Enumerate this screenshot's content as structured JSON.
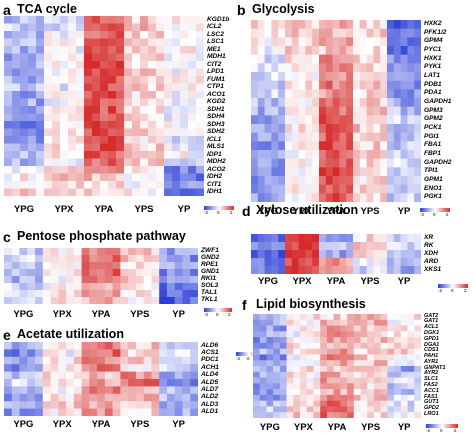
{
  "colors": {
    "low": "#2b3fd6",
    "mid": "#ffffff",
    "high": "#d62b2b"
  },
  "colorbar_ticks": [
    "-2",
    "0",
    "2"
  ],
  "panels": [
    {
      "id": "a",
      "label": "a",
      "title": "TCA cycle",
      "conditions": [
        "YPG",
        "YPX",
        "YPA",
        "YPS",
        "YP"
      ],
      "genes": [
        "KGD1b",
        "ICL2",
        "LSC2",
        "LSC1",
        "ME1",
        "MDH1",
        "CIT2",
        "LPD1",
        "FUM1",
        "CTP1",
        "ACO1",
        "KGD2",
        "SDH1",
        "SDH4",
        "SDH3",
        "SDH2",
        "ICL1",
        "MLS1",
        "IDP1",
        "MDH2",
        "ACO2",
        "IDH2",
        "CIT1",
        "IDH1"
      ],
      "profiles": [
        [
          -0.6,
          -0.2,
          1.6,
          0.5,
          0.1
        ],
        [
          -0.5,
          -0.3,
          1.4,
          0.6,
          0.2
        ],
        [
          -0.7,
          -0.1,
          1.5,
          0.4,
          -0.1
        ],
        [
          -0.6,
          0.0,
          1.7,
          0.3,
          0.0
        ],
        [
          -0.8,
          -0.2,
          1.5,
          0.6,
          0.1
        ],
        [
          -0.9,
          0.1,
          1.6,
          0.4,
          -0.2
        ],
        [
          -0.7,
          0.0,
          1.8,
          0.2,
          -0.1
        ],
        [
          -0.8,
          -0.1,
          1.6,
          0.5,
          0.0
        ],
        [
          -0.9,
          0.0,
          1.5,
          0.3,
          0.1
        ],
        [
          -0.6,
          -0.2,
          1.7,
          0.4,
          0.0
        ],
        [
          -1.0,
          0.1,
          1.6,
          0.3,
          -0.1
        ],
        [
          -0.9,
          0.0,
          1.5,
          0.5,
          0.0
        ],
        [
          -1.1,
          0.1,
          1.6,
          0.4,
          -0.2
        ],
        [
          -1.0,
          0.2,
          1.5,
          0.3,
          -0.1
        ],
        [
          -1.2,
          0.0,
          1.7,
          0.5,
          0.0
        ],
        [
          -1.1,
          0.1,
          1.6,
          0.4,
          -0.1
        ],
        [
          -1.0,
          0.3,
          1.8,
          0.2,
          -0.3
        ],
        [
          -0.9,
          0.2,
          1.7,
          0.4,
          -0.2
        ],
        [
          -0.8,
          0.1,
          1.5,
          0.6,
          0.0
        ],
        [
          -0.7,
          0.0,
          1.4,
          0.5,
          -0.4
        ],
        [
          -0.3,
          0.5,
          1.0,
          0.2,
          -1.3
        ],
        [
          0.1,
          0.6,
          0.6,
          0.1,
          -1.5
        ],
        [
          0.2,
          0.5,
          0.4,
          0.0,
          -1.2
        ],
        [
          0.4,
          0.6,
          0.3,
          0.1,
          -1.4
        ]
      ]
    },
    {
      "id": "b",
      "label": "b",
      "title": "Glycolysis",
      "conditions": [
        "YPG",
        "YPX",
        "YPA",
        "YPS",
        "YP"
      ],
      "genes": [
        "HXK2",
        "PFK1/2",
        "GPM4",
        "PYC1",
        "HXK1",
        "PYK1",
        "LAT1",
        "PDB1",
        "PDA1",
        "GAPDH1",
        "GPM3",
        "GPM2",
        "PCK1",
        "PGI1",
        "FBA1",
        "FBP1",
        "GAPDH2",
        "TPI1",
        "GPM1",
        "ENO1",
        "PGK1"
      ],
      "profiles": [
        [
          0.3,
          0.5,
          0.7,
          0.2,
          -1.6
        ],
        [
          0.2,
          0.6,
          0.6,
          0.4,
          -1.5
        ],
        [
          0.1,
          0.5,
          0.8,
          0.3,
          -1.3
        ],
        [
          0.0,
          0.6,
          0.5,
          0.2,
          -1.7
        ],
        [
          -0.3,
          0.4,
          1.0,
          0.3,
          -1.2
        ],
        [
          -0.4,
          0.3,
          1.2,
          0.4,
          -1.1
        ],
        [
          -0.3,
          0.2,
          1.1,
          0.3,
          -1.0
        ],
        [
          -0.5,
          0.3,
          1.2,
          0.5,
          -1.3
        ],
        [
          -0.4,
          0.4,
          1.0,
          0.3,
          -1.2
        ],
        [
          -0.6,
          0.2,
          1.3,
          0.4,
          -0.9
        ],
        [
          -0.8,
          0.1,
          1.4,
          0.5,
          -0.6
        ],
        [
          -0.9,
          0.0,
          1.5,
          0.4,
          -0.5
        ],
        [
          -1.0,
          0.2,
          1.6,
          0.5,
          -0.7
        ],
        [
          -0.9,
          0.1,
          1.5,
          0.3,
          -0.6
        ],
        [
          -1.1,
          0.0,
          1.7,
          0.4,
          -0.5
        ],
        [
          -1.0,
          0.1,
          1.6,
          0.5,
          -0.6
        ],
        [
          -1.1,
          0.2,
          1.5,
          0.3,
          -0.4
        ],
        [
          -1.0,
          0.0,
          1.6,
          0.4,
          -0.5
        ],
        [
          -1.2,
          0.1,
          1.7,
          0.3,
          -0.6
        ],
        [
          -1.1,
          0.0,
          1.6,
          0.5,
          -0.4
        ],
        [
          -1.0,
          0.2,
          1.5,
          0.4,
          -0.5
        ]
      ]
    },
    {
      "id": "c",
      "label": "c",
      "title": "Pentose phosphate pathway",
      "conditions": [
        "YPG",
        "YPX",
        "YPA",
        "YPS",
        "YP"
      ],
      "genes": [
        "ZWF1",
        "GND2",
        "RPE1",
        "GND1",
        "RKI1",
        "SOL3",
        "TAL1",
        "TKL1"
      ],
      "profiles": [
        [
          -0.5,
          0.2,
          1.2,
          0.4,
          -1.0
        ],
        [
          -0.4,
          0.3,
          1.4,
          0.5,
          -1.1
        ],
        [
          -0.6,
          0.1,
          1.6,
          0.3,
          -0.9
        ],
        [
          -0.5,
          0.2,
          1.5,
          0.2,
          -1.2
        ],
        [
          -0.7,
          0.0,
          1.3,
          0.4,
          -1.0
        ],
        [
          -0.3,
          0.1,
          0.9,
          0.2,
          -1.4
        ],
        [
          -0.2,
          0.3,
          0.8,
          0.3,
          -1.5
        ],
        [
          -0.4,
          0.2,
          0.7,
          0.1,
          -1.6
        ]
      ]
    },
    {
      "id": "d",
      "label": "d",
      "title": "Xylose utilization",
      "conditions": [
        "YPG",
        "YPX",
        "YPA",
        "YPS",
        "YP"
      ],
      "genes": [
        "XR",
        "RK",
        "XDH",
        "ARD",
        "XKS1"
      ],
      "profiles": [
        [
          -1.5,
          2.0,
          -0.8,
          0.3,
          -0.6
        ],
        [
          -1.3,
          1.9,
          -0.6,
          0.6,
          -0.4
        ],
        [
          -1.6,
          2.1,
          -0.9,
          0.4,
          -0.5
        ],
        [
          -1.4,
          1.8,
          0.9,
          -0.2,
          -0.8
        ],
        [
          -1.2,
          1.7,
          1.2,
          -0.4,
          -0.9
        ]
      ]
    },
    {
      "id": "e",
      "label": "e",
      "title": "Acetate utilization",
      "conditions": [
        "YPG",
        "YPX",
        "YPA",
        "YPS",
        "YP"
      ],
      "genes": [
        "ALD6",
        "ACS1",
        "PDC1",
        "ACH1",
        "ALD4",
        "ALD5",
        "ALD7",
        "ALD2",
        "ALD3",
        "ALD1"
      ],
      "profiles": [
        [
          -0.8,
          0.2,
          1.2,
          0.5,
          -0.6
        ],
        [
          -1.2,
          0.0,
          1.4,
          0.3,
          -0.4
        ],
        [
          -0.9,
          0.3,
          1.0,
          0.6,
          -0.7
        ],
        [
          -1.1,
          0.1,
          1.3,
          0.2,
          -0.5
        ],
        [
          -0.6,
          0.4,
          0.6,
          1.1,
          -1.0
        ],
        [
          -0.4,
          0.2,
          0.8,
          1.3,
          -1.2
        ],
        [
          -0.9,
          0.0,
          1.1,
          0.7,
          -0.6
        ],
        [
          -1.0,
          0.3,
          0.9,
          0.9,
          -0.8
        ],
        [
          -0.8,
          0.5,
          0.7,
          0.6,
          -1.1
        ],
        [
          -1.1,
          0.2,
          1.0,
          0.4,
          -0.9
        ]
      ]
    },
    {
      "id": "f",
      "label": "f",
      "title": "Lipid biosynthesis",
      "conditions": [
        "YPG",
        "YPX",
        "YPA",
        "YPS",
        "YP"
      ],
      "genes": [
        "GAT2",
        "GAT1",
        "ACL1",
        "DGK1",
        "GPD1",
        "DGA1",
        "CDS1",
        "PAH1",
        "AYR1",
        "GNPAT1",
        "AYR2",
        "SLC1",
        "FAS2",
        "ACC1",
        "FAS1",
        "GUT1",
        "GPD2",
        "LRO1"
      ],
      "profiles": [
        [
          -0.6,
          0.3,
          0.4,
          0.8,
          0.2
        ],
        [
          -0.8,
          0.1,
          0.6,
          0.9,
          0.0
        ],
        [
          -1.0,
          0.2,
          0.9,
          0.5,
          0.1
        ],
        [
          -0.9,
          0.0,
          1.0,
          0.4,
          0.2
        ],
        [
          -1.1,
          0.1,
          0.8,
          0.6,
          0.3
        ],
        [
          -1.0,
          0.3,
          0.7,
          0.4,
          0.5
        ],
        [
          -0.8,
          0.2,
          0.9,
          0.3,
          0.4
        ],
        [
          -1.2,
          0.0,
          1.1,
          0.5,
          0.2
        ],
        [
          -0.9,
          0.1,
          0.8,
          0.6,
          0.1
        ],
        [
          -0.7,
          0.3,
          0.5,
          0.4,
          -0.9
        ],
        [
          -0.8,
          0.2,
          0.7,
          0.3,
          -0.6
        ],
        [
          -1.0,
          0.1,
          0.9,
          0.5,
          -0.5
        ],
        [
          -1.1,
          0.0,
          1.0,
          0.3,
          -0.7
        ],
        [
          -0.9,
          0.2,
          0.8,
          0.4,
          -0.8
        ],
        [
          -1.0,
          0.1,
          1.1,
          0.5,
          -0.4
        ],
        [
          -0.6,
          0.4,
          1.3,
          0.2,
          -0.3
        ],
        [
          -0.5,
          0.3,
          1.5,
          0.1,
          -0.2
        ],
        [
          -0.4,
          0.5,
          1.4,
          0.3,
          -0.1
        ]
      ]
    }
  ]
}
